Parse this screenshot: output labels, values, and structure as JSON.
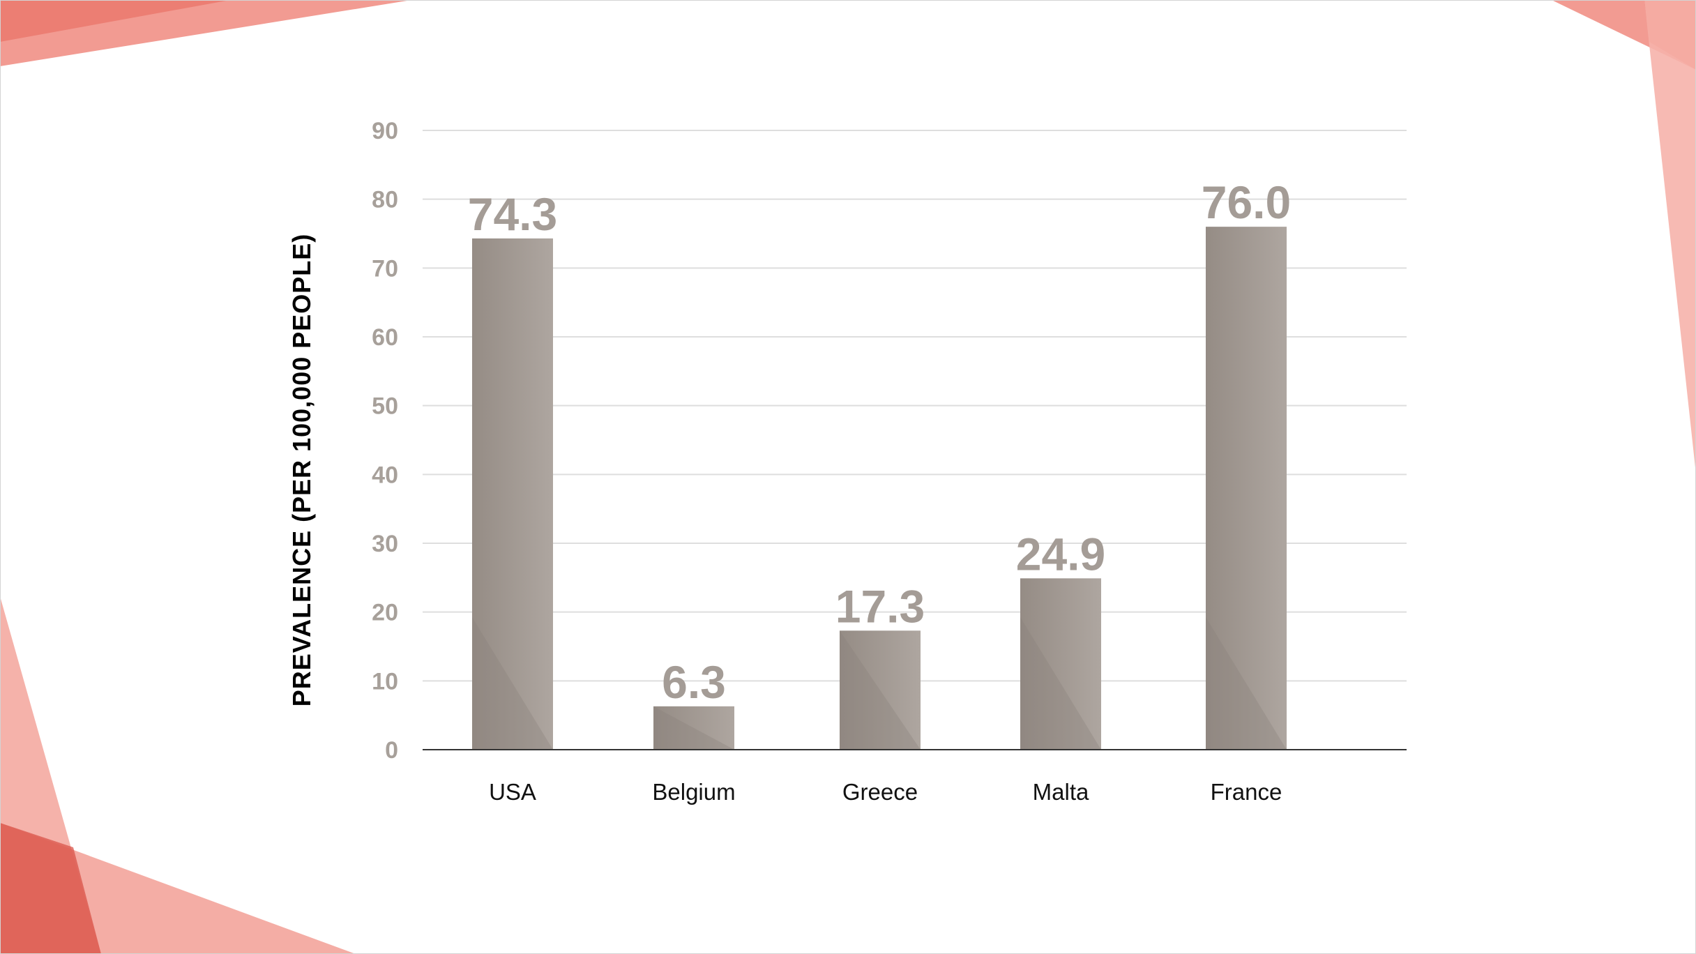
{
  "colors": {
    "bar": "#9b928b",
    "bar_light": "#aca49e",
    "accent": "#e8665a",
    "accent_light": "#f4b0a8",
    "gridline": "#dedede",
    "axis": "#333333"
  },
  "chart_data": {
    "type": "bar",
    "categories": [
      "USA",
      "Belgium",
      "Greece",
      "Malta",
      "France"
    ],
    "values": [
      74.3,
      6.3,
      17.3,
      24.9,
      76.0
    ],
    "value_labels": [
      "74.3",
      "6.3",
      "17.3",
      "24.9",
      "76.0"
    ],
    "ylabel": "PREVALENCE (PER 100,000 PEOPLE)",
    "xlabel": "",
    "ylim": [
      0,
      90
    ],
    "yticks": [
      0,
      10,
      20,
      30,
      40,
      50,
      60,
      70,
      80,
      90
    ],
    "grid": true,
    "legend": "none"
  }
}
